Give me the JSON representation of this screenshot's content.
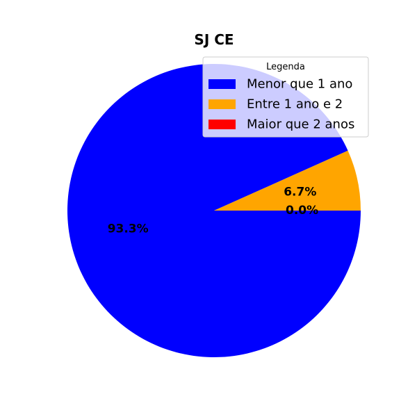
{
  "chart_data": {
    "type": "pie",
    "title": "SJ CE",
    "categories": [
      "Menor que 1 ano",
      "Entre 1 ano e 2",
      "Maior que 2 anos"
    ],
    "values": [
      93.3,
      6.7,
      0.0
    ],
    "labels": [
      "93.3%",
      "6.7%",
      "0.0%"
    ],
    "colors": [
      "#0000ff",
      "#ffa500",
      "#ff0000"
    ],
    "start_angle_deg": 0,
    "direction": "clockwise",
    "legend": {
      "title": "Legenda",
      "placement": "top-right"
    }
  }
}
